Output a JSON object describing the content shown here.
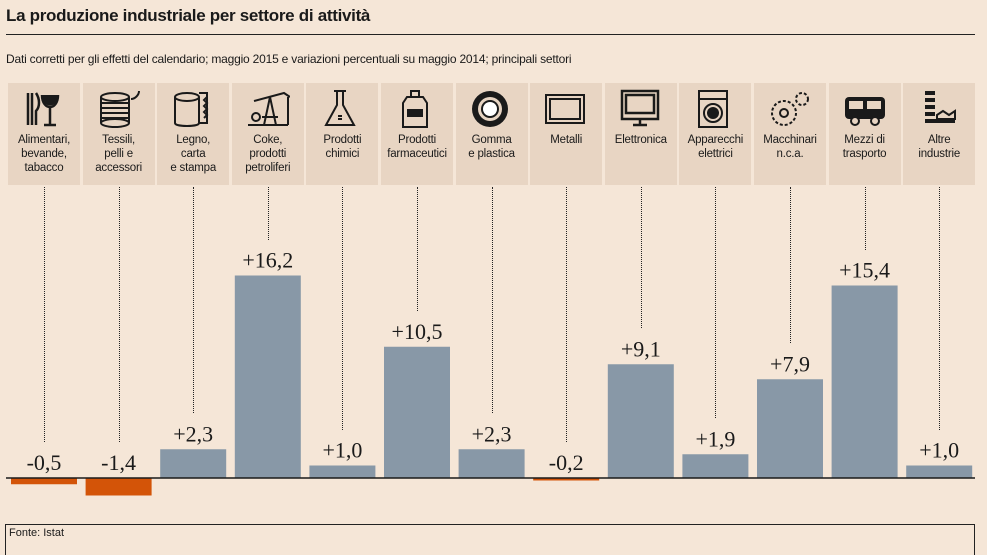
{
  "title": "La produzione industriale per settore di attività",
  "subtitle": "Dati corretti per gli effetti del calendario; maggio 2015 e variazioni percentuali su maggio 2014; principali settori",
  "source": "Fonte: Istat",
  "colors": {
    "positive": "#8898a7",
    "negative": "#d35408",
    "header_cell": "#e8d5c3",
    "background": "#f5e6d7"
  },
  "chart_data": {
    "type": "bar",
    "categories": [
      "Alimentari,\nbevande,\ntabacco",
      "Tessili,\npelli e\naccessori",
      "Legno,\ncarta\ne stampa",
      "Coke,\nprodotti\npetroliferi",
      "Prodotti\nchimici",
      "Prodotti\nfarmaceutici",
      "Gomma\ne plastica",
      "Metalli",
      "Elettronica",
      "Apparecchi\nelettrici",
      "Macchinari\nn.c.a.",
      "Mezzi di\ntrasporto",
      "Altre\nindustrie"
    ],
    "icons": [
      "cutlery-glass-icon",
      "thread-spool-icon",
      "paper-roll-icon",
      "oil-pump-icon",
      "flask-icon",
      "medicine-bottle-icon",
      "tire-icon",
      "metal-plate-icon",
      "monitor-icon",
      "washing-machine-icon",
      "gears-icon",
      "bus-icon",
      "factory-icon"
    ],
    "values": [
      -0.5,
      -1.4,
      2.3,
      16.2,
      1.0,
      10.5,
      2.3,
      -0.2,
      9.1,
      1.9,
      7.9,
      15.4,
      1.0
    ],
    "labels": [
      "-0,5",
      "-1,4",
      "+2,3",
      "+16,2",
      "+1,0",
      "+10,5",
      "+2,3",
      "-0,2",
      "+9,1",
      "+1,9",
      "+7,9",
      "+15,4",
      "+1,0"
    ],
    "ylabel": "",
    "xlabel": "",
    "grid": false
  }
}
